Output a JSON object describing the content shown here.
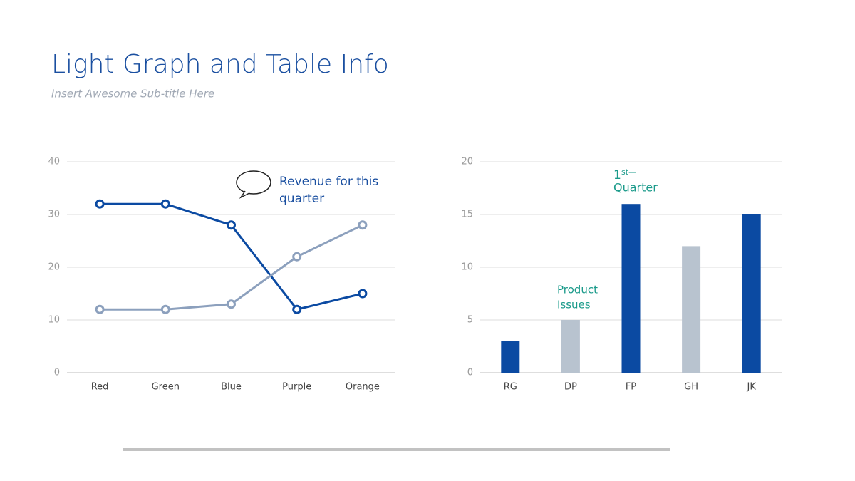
{
  "title": "Light Graph and Table Info",
  "subtitle": "Insert Awesome Sub-title Here",
  "chart_data": [
    {
      "type": "line",
      "categories": [
        "Red",
        "Green",
        "Blue",
        "Purple",
        "Orange"
      ],
      "series": [
        {
          "color": "#0b4aa2",
          "values": [
            32,
            32,
            28,
            12,
            15
          ]
        },
        {
          "color": "#8ca0bd",
          "values": [
            12,
            12,
            13,
            22,
            28
          ]
        }
      ],
      "ylim": [
        0,
        40
      ],
      "yticks": [
        0,
        10,
        20,
        30,
        40
      ],
      "grid": true,
      "annotations": [
        [
          "Revenue for this",
          "quarter"
        ]
      ]
    },
    {
      "type": "bar",
      "categories": [
        "RG",
        "DP",
        "FP",
        "GH",
        "JK"
      ],
      "values": [
        3,
        5,
        16,
        12,
        15
      ],
      "colors": [
        "#0b4aa2",
        "#b8c3cf",
        "#0b4aa2",
        "#b8c3cf",
        "#0b4aa2"
      ],
      "ylim": [
        0,
        20
      ],
      "yticks": [
        0,
        5,
        10,
        15,
        20
      ],
      "grid": true,
      "annotations": [
        [
          "Product",
          "Issues"
        ],
        [
          "1",
          "st—",
          "Quarter"
        ]
      ]
    }
  ]
}
